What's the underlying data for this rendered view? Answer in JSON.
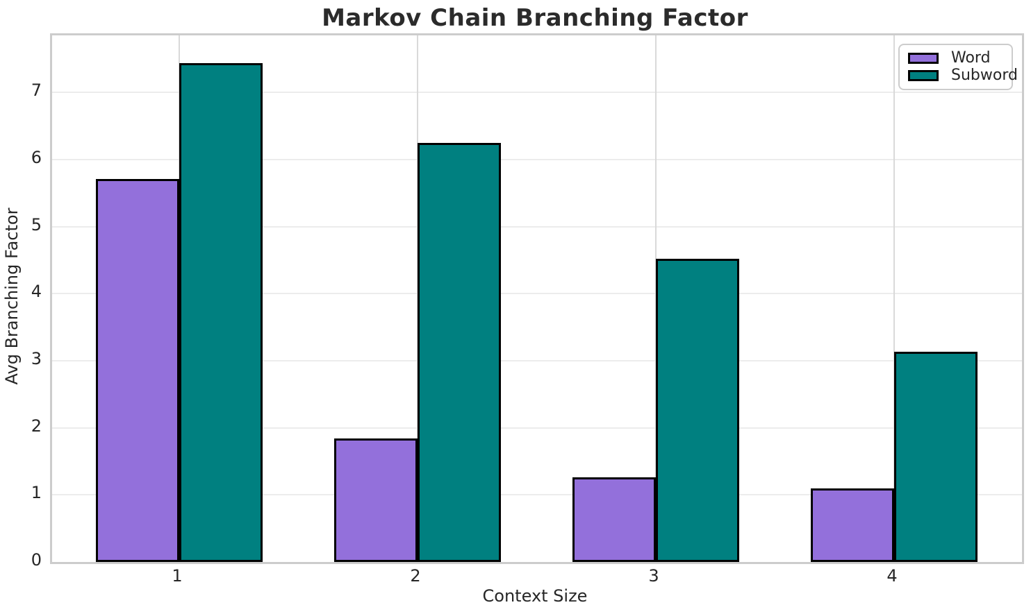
{
  "figure": {
    "title": "Markov Chain Branching Factor"
  },
  "chart_data": {
    "type": "bar",
    "title": "Markov Chain Branching Factor",
    "xlabel": "Context Size",
    "ylabel": "Avg Branching Factor",
    "categories": [
      "1",
      "2",
      "3",
      "4"
    ],
    "series": [
      {
        "name": "Word",
        "color": "#9370DB",
        "values": [
          5.71,
          1.84,
          1.26,
          1.1
        ]
      },
      {
        "name": "Subword",
        "color": "#008080",
        "values": [
          7.44,
          6.25,
          4.52,
          3.13
        ]
      }
    ],
    "yticks": [
      0,
      1,
      2,
      3,
      4,
      5,
      6,
      7
    ],
    "ylim": [
      0,
      7.85
    ],
    "bar_edge_color": "#000000",
    "grid": true,
    "legend": {
      "position": "upper right",
      "entries": [
        "Word",
        "Subword"
      ]
    }
  }
}
